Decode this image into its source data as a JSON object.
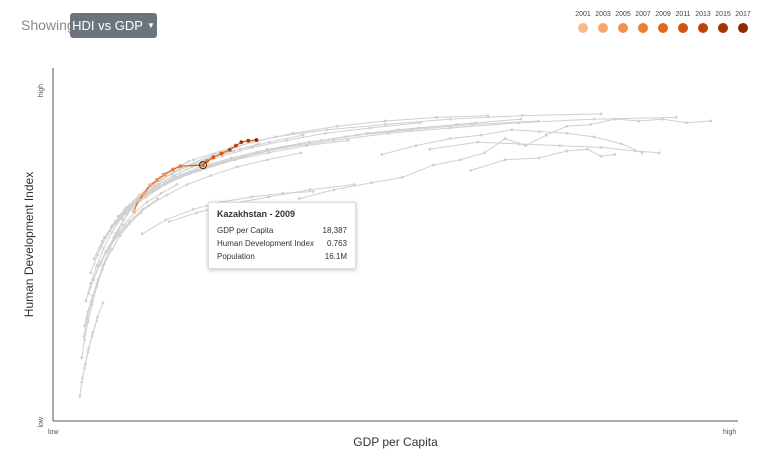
{
  "header": {
    "showing_label": "Showing",
    "dropdown_label": "HDI vs GDP"
  },
  "legend": {
    "items": [
      {
        "year": "2001",
        "color": "#f9b98a"
      },
      {
        "year": "2003",
        "color": "#f7a56d"
      },
      {
        "year": "2005",
        "color": "#f58f4e"
      },
      {
        "year": "2007",
        "color": "#ef7a35"
      },
      {
        "year": "2009",
        "color": "#e3661f"
      },
      {
        "year": "2011",
        "color": "#d15412"
      },
      {
        "year": "2013",
        "color": "#bb4208"
      },
      {
        "year": "2015",
        "color": "#9f3404"
      },
      {
        "year": "2017",
        "color": "#8a2a00"
      }
    ]
  },
  "tooltip": {
    "title": "Kazakhstan - 2009",
    "rows": [
      {
        "label": "GDP per Capita",
        "value": "18,387"
      },
      {
        "label": "Human Development Index",
        "value": "0.763"
      },
      {
        "label": "Population",
        "value": "16.1M"
      }
    ]
  },
  "chart_data": {
    "type": "line",
    "xlabel": "GDP per Capita",
    "ylabel": "Human Development Index",
    "x_tick_labels": {
      "low": "low",
      "high": "high"
    },
    "y_tick_labels": {
      "low": "low",
      "high": "high"
    },
    "xlim": [
      0,
      100
    ],
    "ylim": [
      0,
      100
    ],
    "grid": false,
    "background_color": "#d0d0d0",
    "highlight_color": "#e3661f",
    "highlight": {
      "name": "Kazakhstan",
      "years": [
        "2001",
        "2002",
        "2003",
        "2004",
        "2005",
        "2006",
        "2007",
        "2008",
        "2009",
        "2010",
        "2011",
        "2012",
        "2013",
        "2014",
        "2015",
        "2016",
        "2017"
      ],
      "x": [
        11.8,
        12.5,
        13.3,
        14.2,
        15.2,
        16.3,
        17.5,
        18.6,
        21.9,
        22.5,
        23.4,
        24.6,
        25.8,
        26.7,
        27.5,
        28.5,
        29.7
      ],
      "y": [
        59.5,
        62.5,
        64.5,
        66.8,
        68.3,
        69.8,
        71.2,
        72.2,
        72.5,
        73.6,
        74.7,
        75.8,
        76.8,
        78.0,
        79.0,
        79.4,
        79.6
      ],
      "selected_year": "2009"
    },
    "countries": [
      {
        "x": [
          4.5,
          5.0,
          5.6,
          6.4,
          7.3,
          8.3,
          9.5,
          10.8,
          12.2,
          13.8,
          15.6,
          17.6,
          19.8
        ],
        "y": [
          24.0,
          29.0,
          34.0,
          39.0,
          44.0,
          49.0,
          54.0,
          58.5,
          62.5,
          66.0,
          69.0,
          71.5,
          73.5
        ]
      },
      {
        "x": [
          4.2,
          4.6,
          5.1,
          5.7,
          6.4,
          7.2,
          8.1,
          9.1,
          10.3,
          11.6
        ],
        "y": [
          18.0,
          23.0,
          28.0,
          33.0,
          38.0,
          43.0,
          48.0,
          53.0,
          57.0,
          60.5
        ]
      },
      {
        "x": [
          3.9,
          4.2,
          4.6,
          5.1,
          5.7,
          6.4
        ],
        "y": [
          7.0,
          11.0,
          15.0,
          19.5,
          24.0,
          28.5
        ]
      },
      {
        "x": [
          4.8,
          5.5,
          6.4,
          7.4,
          8.6,
          10.0,
          11.6,
          13.4,
          15.4,
          17.7,
          20.3,
          23.2,
          26.4,
          30.0
        ],
        "y": [
          34.0,
          39.0,
          44.0,
          49.0,
          53.5,
          57.5,
          61.0,
          64.0,
          67.0,
          69.5,
          72.0,
          74.5,
          76.5,
          78.5
        ]
      },
      {
        "x": [
          5.5,
          6.5,
          7.7,
          9.1,
          10.7,
          12.6,
          14.8,
          17.3,
          20.2,
          23.5,
          27.3,
          31.6,
          36.5
        ],
        "y": [
          42.0,
          47.0,
          52.0,
          56.5,
          60.5,
          64.0,
          67.0,
          70.0,
          72.5,
          75.0,
          77.0,
          79.0,
          81.0
        ]
      },
      {
        "x": [
          6.0,
          7.2,
          8.7,
          10.4,
          12.4,
          14.8,
          17.6,
          20.9,
          24.7,
          29.1,
          34.1,
          39.8,
          46.3,
          53.6
        ],
        "y": [
          46.0,
          51.0,
          55.5,
          59.5,
          63.0,
          66.5,
          69.5,
          72.5,
          75.0,
          77.5,
          79.5,
          81.5,
          83.0,
          84.5
        ]
      },
      {
        "x": [
          7.5,
          9.2,
          11.2,
          13.6,
          16.4,
          19.7,
          23.6,
          28.1,
          33.3,
          39.2,
          45.9,
          53.4,
          61.7
        ],
        "y": [
          52.0,
          56.0,
          60.0,
          63.5,
          67.0,
          70.0,
          72.5,
          75.0,
          77.5,
          79.5,
          81.5,
          83.0,
          84.5
        ]
      },
      {
        "x": [
          9.5,
          11.8,
          14.5,
          17.7,
          21.5,
          26.0,
          31.3,
          37.4,
          44.4,
          52.3,
          61.2,
          70.9
        ],
        "y": [
          58.0,
          62.0,
          65.5,
          69.0,
          72.0,
          74.5,
          77.0,
          79.0,
          81.0,
          82.5,
          84.0,
          85.0
        ]
      },
      {
        "x": [
          12.0,
          15.0,
          18.6,
          22.9,
          28.0,
          34.0,
          41.0,
          49.0,
          58.0,
          68.0,
          79.0,
          91.0
        ],
        "y": [
          62.0,
          66.0,
          69.5,
          72.5,
          75.0,
          77.5,
          79.5,
          81.5,
          83.0,
          84.5,
          85.5,
          86.0
        ]
      },
      {
        "x": [
          5.2,
          5.9,
          6.7,
          7.7,
          8.9,
          10.3,
          11.9,
          13.7,
          15.8,
          18.1
        ],
        "y": [
          36.0,
          40.0,
          44.0,
          48.0,
          52.0,
          55.5,
          59.0,
          62.0,
          64.5,
          67.0
        ]
      },
      {
        "x": [
          4.6,
          5.1,
          5.8,
          6.6,
          7.5,
          8.6,
          9.8,
          11.2,
          12.8
        ],
        "y": [
          27.0,
          31.0,
          35.5,
          40.0,
          44.5,
          48.5,
          52.5,
          56.0,
          59.0
        ]
      },
      {
        "x": [
          13.0,
          16.5,
          20.5,
          24.5,
          29.0,
          33.5,
          38.0
        ],
        "y": [
          53.0,
          57.0,
          60.0,
          62.0,
          63.5,
          64.5,
          65.0
        ]
      },
      {
        "x": [
          17.0,
          21.0,
          26.0,
          31.5,
          37.5,
          44.0
        ],
        "y": [
          56.5,
          59.0,
          61.5,
          63.5,
          65.5,
          67.0
        ]
      },
      {
        "x": [
          36.0,
          41.0,
          46.5,
          51.0,
          55.5,
          59.5,
          63.0,
          66.0,
          69.0,
          72.0,
          75.0,
          78.5,
          82.0,
          85.5,
          89.0,
          92.5,
          96.0
        ],
        "y": [
          63.0,
          65.5,
          67.5,
          69.0,
          72.5,
          74.0,
          76.0,
          80.0,
          78.0,
          81.0,
          83.5,
          84.0,
          85.5,
          85.0,
          85.5,
          84.5,
          85.0
        ]
      },
      {
        "x": [
          61.0,
          66.0,
          71.0,
          75.0,
          78.0,
          80.0,
          82.0
        ],
        "y": [
          71.0,
          74.0,
          74.5,
          76.5,
          77.0,
          75.0,
          75.5
        ]
      },
      {
        "x": [
          48.0,
          53.0,
          58.0,
          62.5,
          67.0,
          71.0,
          75.0,
          79.0,
          83.0,
          86.0
        ],
        "y": [
          75.5,
          78.0,
          80.0,
          81.0,
          82.5,
          82.0,
          81.5,
          80.5,
          78.5,
          76.0
        ]
      },
      {
        "x": [
          55.0,
          62.0,
          68.0,
          74.0,
          80.0,
          85.0,
          88.5
        ],
        "y": [
          77.0,
          79.0,
          78.5,
          78.0,
          77.5,
          76.5,
          76.0
        ]
      },
      {
        "x": [
          14.5,
          18.5,
          23.5,
          29.0,
          35.0,
          41.5,
          48.5,
          56.0,
          63.5
        ],
        "y": [
          67.0,
          71.5,
          75.5,
          79.0,
          81.5,
          83.5,
          85.0,
          86.0,
          86.5
        ]
      },
      {
        "x": [
          8.5,
          10.4,
          12.7,
          15.4,
          18.6,
          22.3,
          26.6,
          31.5,
          37.0,
          43.1
        ],
        "y": [
          55.0,
          59.0,
          62.5,
          66.0,
          69.0,
          71.5,
          74.0,
          76.0,
          78.0,
          79.5
        ]
      },
      {
        "x": [
          6.8,
          8.0,
          9.5,
          11.2,
          13.2,
          15.5,
          18.1,
          21.0
        ],
        "y": [
          49.0,
          53.0,
          57.0,
          60.5,
          63.5,
          66.5,
          69.0,
          71.0
        ]
      },
      {
        "x": [
          10.5,
          13.2,
          16.4,
          20.2,
          24.7,
          29.9,
          35.9,
          42.7,
          50.4,
          58.9,
          68.3
        ],
        "y": [
          60.0,
          64.0,
          67.5,
          70.5,
          73.5,
          76.0,
          78.5,
          80.5,
          82.5,
          84.0,
          85.5
        ]
      },
      {
        "x": [
          4.3,
          4.7,
          5.2,
          5.8,
          6.5,
          7.3
        ],
        "y": [
          12.0,
          16.0,
          20.5,
          25.0,
          29.5,
          33.5
        ]
      },
      {
        "x": [
          5.9,
          6.9,
          8.1,
          9.5,
          11.2,
          13.1,
          15.3
        ],
        "y": [
          40.0,
          44.5,
          49.0,
          53.0,
          56.5,
          60.0,
          63.0
        ]
      },
      {
        "x": [
          16.0,
          20.5,
          26.0,
          32.5,
          40.0,
          48.5,
          58.0,
          68.5,
          80.0
        ],
        "y": [
          70.0,
          74.0,
          77.5,
          80.5,
          82.5,
          84.0,
          85.5,
          86.5,
          87.0
        ]
      },
      {
        "x": [
          7.0,
          8.3,
          9.9,
          11.8,
          14.0,
          16.6,
          19.6,
          23.0,
          26.9,
          31.3,
          36.2
        ],
        "y": [
          45.0,
          49.5,
          53.5,
          57.5,
          61.0,
          64.0,
          67.0,
          69.5,
          72.0,
          74.0,
          76.0
        ]
      }
    ]
  }
}
